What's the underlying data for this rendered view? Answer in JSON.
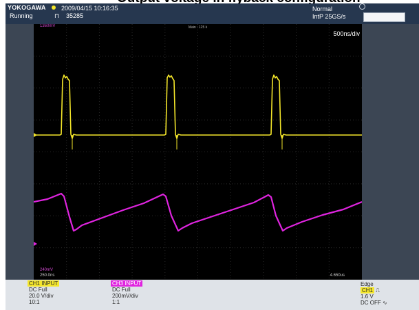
{
  "heading": {
    "text": "Output voltage in flyback configuration"
  },
  "header": {
    "brand": "YOKOGAWA",
    "datetime": "2009/04/15 10:16:35",
    "status": "Running",
    "count": "35285",
    "mode": "Normal",
    "sample_rate": "IntP  25GS/s"
  },
  "screen": {
    "zoom_label": "Main : 125 k",
    "time_div": "500ns/div",
    "ch_top_level": "1360mV",
    "ch_bottom_level": "240mV",
    "time_left": "250.0ns",
    "time_right": "4.650us"
  },
  "channels": [
    {
      "label": "CH1  INPUT",
      "coupling": "DC Full",
      "scale": "20.0 V/div",
      "probe": "10:1",
      "color": "#f4e62a"
    },
    {
      "label": "CH3  INPUT",
      "coupling": "DC Full",
      "scale": "200mV/div",
      "probe": "1:1",
      "color": "#e024e0"
    }
  ],
  "trigger": {
    "type": "Edge",
    "source": "CH1",
    "level": "1.6 V",
    "hf_reject": "DC OFF"
  },
  "colors": {
    "ch1": "#f4e62a",
    "ch3": "#e024e0"
  },
  "icons": {
    "trigger_slope": "rising-edge-icon",
    "knob": "knob-icon",
    "hf_reject": "wave-icon"
  }
}
